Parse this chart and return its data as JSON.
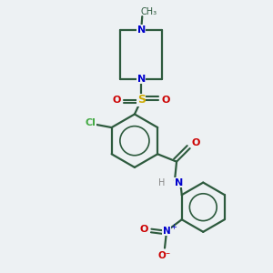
{
  "background_color": "#edf1f3",
  "bond_color": "#2d5a3d",
  "atom_colors": {
    "N": "#0000cc",
    "O": "#cc0000",
    "S": "#ccaa00",
    "Cl": "#44aa44",
    "H": "#888888",
    "C": "#2d5a3d"
  },
  "figsize": [
    3.0,
    3.0
  ],
  "dpi": 100
}
